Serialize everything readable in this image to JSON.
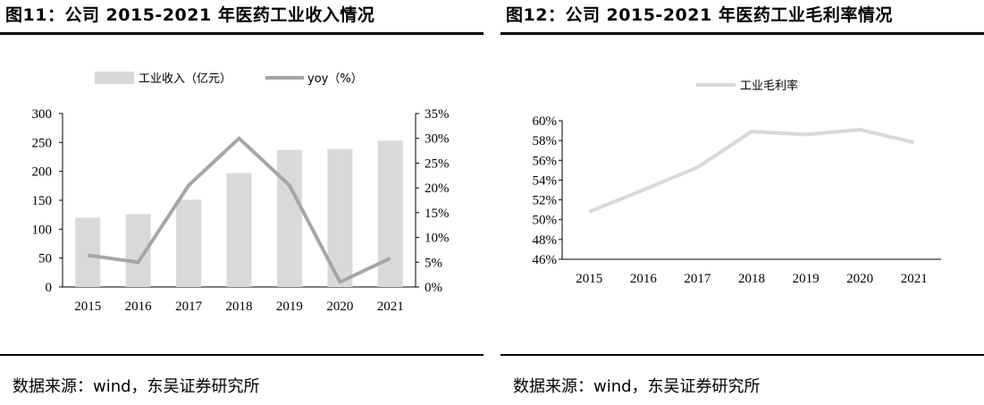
{
  "left": {
    "title": "图11：公司 2015-2021 年医药工业收入情况",
    "source": "数据来源：wind，东吴证券研究所"
  },
  "right": {
    "title": "图12：公司 2015-2021 年医药工业毛利率情况",
    "source": "数据来源：wind，东吴证券研究所"
  },
  "chart_data": [
    {
      "type": "bar",
      "categories": [
        "2015",
        "2016",
        "2017",
        "2018",
        "2019",
        "2020",
        "2021"
      ],
      "series": [
        {
          "name": "工业收入（亿元）",
          "type": "bar",
          "axis": "left",
          "values": [
            120,
            126,
            151,
            197,
            237,
            239,
            253
          ],
          "color": "#d9d9d9"
        },
        {
          "name": "yoy（%）",
          "type": "line",
          "axis": "right",
          "values": [
            6.4,
            5.0,
            20.5,
            30.0,
            20.5,
            1.0,
            5.8
          ],
          "color": "#a6a6a6"
        }
      ],
      "y_left": {
        "ylim": [
          0,
          300
        ],
        "ticks": [
          "0",
          "50",
          "100",
          "150",
          "200",
          "250",
          "300"
        ]
      },
      "y_right": {
        "ylim": [
          0,
          35
        ],
        "ticks": [
          "0%",
          "5%",
          "10%",
          "15%",
          "20%",
          "25%",
          "30%",
          "35%"
        ]
      },
      "legend_position": "top",
      "grid": false
    },
    {
      "type": "line",
      "categories": [
        "2015",
        "2016",
        "2017",
        "2018",
        "2019",
        "2020",
        "2021"
      ],
      "series": [
        {
          "name": "工业毛利率",
          "values": [
            50.8,
            53.0,
            55.3,
            58.9,
            58.6,
            59.1,
            57.8
          ],
          "color": "#d9d9d9"
        }
      ],
      "ylim": [
        46,
        60
      ],
      "ticks": [
        "46%",
        "48%",
        "50%",
        "52%",
        "54%",
        "56%",
        "58%",
        "60%"
      ],
      "legend_position": "top",
      "grid": false
    }
  ]
}
